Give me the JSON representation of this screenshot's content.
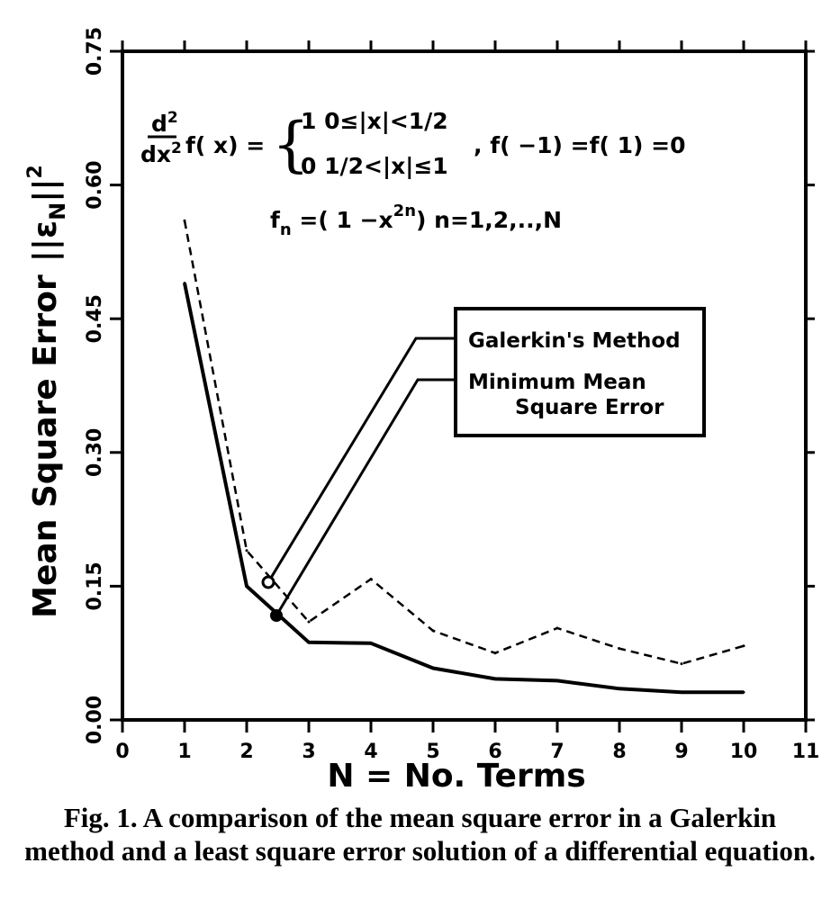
{
  "chart_data": {
    "type": "line",
    "title": "",
    "xlabel": "N = No. Terms",
    "ylabel": "Mean Square Error ||ε_N||²",
    "ylabel_main": "Mean Square Error",
    "ylabel_symbol": "||ε",
    "ylabel_sub": "N",
    "ylabel_tail": "||",
    "ylabel_sup": "2",
    "xlim": [
      0,
      11
    ],
    "ylim": [
      0,
      0.75
    ],
    "xticks": [
      0,
      1,
      2,
      3,
      4,
      5,
      6,
      7,
      8,
      9,
      10,
      11
    ],
    "xtick_labels": [
      "0",
      "1",
      "2",
      "3",
      "4",
      "5",
      "6",
      "7",
      "8",
      "9",
      "10",
      "11"
    ],
    "yticks": [
      0,
      0.15,
      0.3,
      0.45,
      0.6,
      0.75
    ],
    "ytick_labels": [
      "0.00",
      "0.15",
      "0.30",
      "0.45",
      "0.60",
      "0.75"
    ],
    "grid": false,
    "legend_placement": "center-right",
    "series": [
      {
        "name": "Galerkin's Method",
        "style": "dashed",
        "x": [
          1,
          2,
          3,
          4,
          5,
          6,
          7,
          8,
          9,
          10
        ],
        "y": [
          0.56,
          0.19,
          0.11,
          0.158,
          0.1,
          0.075,
          0.103,
          0.08,
          0.063,
          0.083
        ]
      },
      {
        "name": "Minimum Mean Square Error",
        "legend_lines": [
          "Minimum Mean",
          "Square Error"
        ],
        "style": "solid",
        "x": [
          1,
          2,
          3,
          4,
          5,
          6,
          7,
          8,
          9,
          10
        ],
        "y": [
          0.49,
          0.15,
          0.087,
          0.086,
          0.058,
          0.046,
          0.044,
          0.035,
          0.031,
          0.031
        ]
      }
    ],
    "annotations": {
      "eq1_num": "d",
      "eq1_num_sup": "2",
      "eq1_den": "dx",
      "eq1_den_sup": "2",
      "eq1_func": "f( x) =",
      "eq1_case1": "1   0≤|x|<1/2",
      "eq1_case2": "0  1/2<|x|≤1",
      "eq1_bc": ",  f( −1) =f( 1) =0",
      "eq2_f": "f",
      "eq2_sub": "n",
      "eq2_body": " =( 1 −x",
      "eq2_sup": "2n",
      "eq2_tail": ")   n=1,2,..,N"
    }
  },
  "caption": "Fig. 1. A comparison of the mean square error in a Galerkin method and a least square error solution of a differential equation."
}
